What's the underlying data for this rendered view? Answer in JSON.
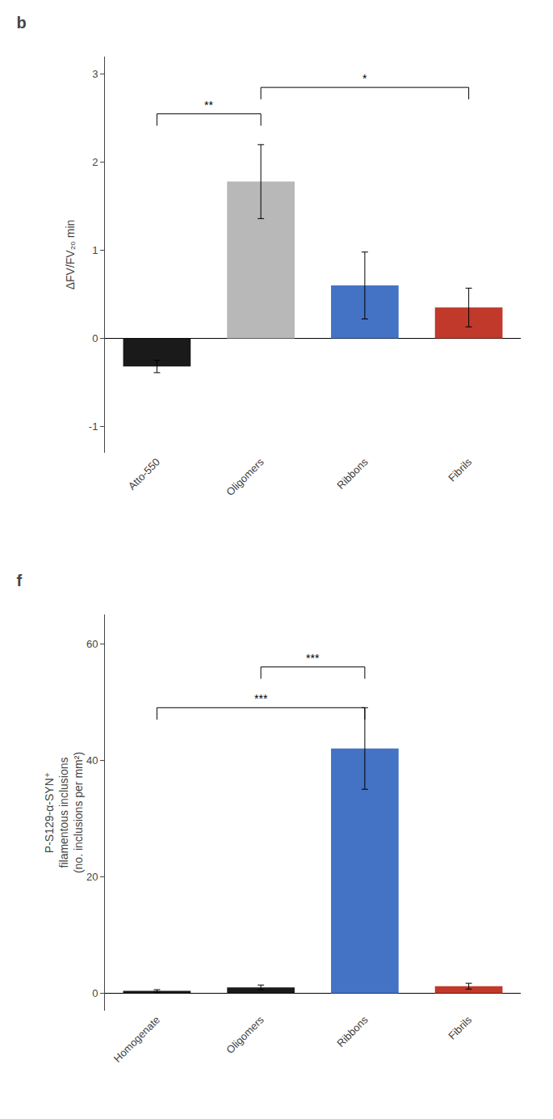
{
  "chart_data": [
    {
      "type": "bar",
      "title": "b",
      "categories": [
        "Atto-550",
        "Oligomers",
        "Ribbons",
        "Fibrils"
      ],
      "values": [
        -0.32,
        1.78,
        0.6,
        0.35
      ],
      "errors": [
        0.07,
        0.42,
        0.38,
        0.22
      ],
      "colors": [
        "#1a1a1a",
        "#b8b8b8",
        "#4472c4",
        "#c0392b"
      ],
      "y_label": "ΔFV/FV₂₀ min",
      "ylim": [
        -1.3,
        3.2
      ],
      "yticks": [
        -1,
        0,
        1,
        2,
        3
      ],
      "grid": false,
      "annotations": [
        {
          "text": "**",
          "x1": "Atto-550",
          "x2": "Oligomers",
          "y": 2.55
        },
        {
          "text": "*",
          "x1": "Oligomers",
          "x2": "Fibrils",
          "y": 2.85
        }
      ]
    },
    {
      "type": "bar",
      "title": "f",
      "categories": [
        "Homogenate",
        "Oligomers",
        "Ribbons",
        "Fibrils"
      ],
      "values": [
        0.4,
        1.0,
        42.0,
        1.2
      ],
      "errors": [
        0.2,
        0.4,
        7.0,
        0.5
      ],
      "colors": [
        "#1a1a1a",
        "#1a1a1a",
        "#4472c4",
        "#c0392b"
      ],
      "y_label": "P-S129-α-SYN⁺\nfilamentous inclusions\n(no. inclusions per mm²)",
      "ylim": [
        -3,
        65
      ],
      "yticks": [
        0,
        20,
        40,
        60
      ],
      "grid": false,
      "annotations": [
        {
          "text": "***",
          "x1": "Homogenate",
          "x2": "Ribbons",
          "y": 49
        },
        {
          "text": "***",
          "x1": "Oligomers",
          "x2": "Ribbons",
          "y": 56
        }
      ]
    }
  ]
}
